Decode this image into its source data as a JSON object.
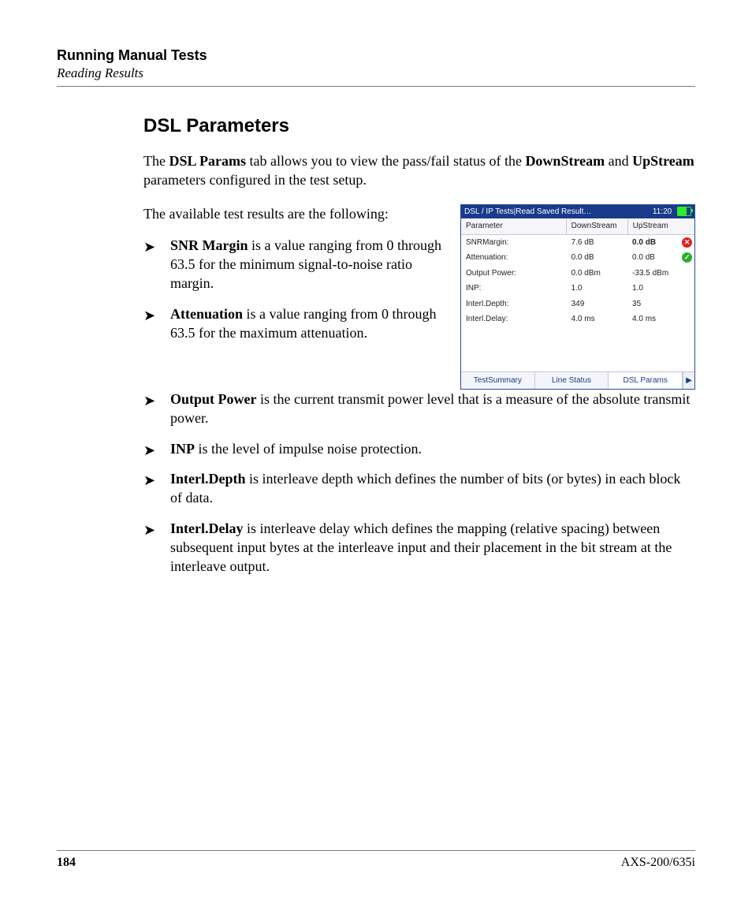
{
  "header": {
    "chapter": "Running Manual Tests",
    "section": "Reading Results"
  },
  "heading": "DSL Parameters",
  "intro": {
    "part1_prefix": "The ",
    "tab_name": "DSL Params",
    "part1_mid": " tab allows you to view the pass/fail status of the ",
    "downstream": "DownStream",
    "and": " and ",
    "upstream": "UpStream",
    "part1_suffix": " parameters configured in the test setup."
  },
  "available_line": "The available test results are the following:",
  "bullets": [
    {
      "term": "SNR Margin",
      "text": " is a value ranging from 0 through 63.5 for the minimum signal-to-noise ratio margin."
    },
    {
      "term": "Attenuation",
      "text": " is a value ranging from 0 through 63.5 for the maximum attenuation."
    },
    {
      "term": "Output Power",
      "text": " is the current transmit power level that is a measure of the absolute transmit power."
    },
    {
      "term": "INP",
      "text": " is the level of impulse noise protection."
    },
    {
      "term": "Interl.Depth",
      "text": " is interleave depth which defines the number of bits (or bytes) in each block of data."
    },
    {
      "term": "Interl.Delay",
      "text": " is interleave delay which defines the mapping (relative spacing) between subsequent input bytes at the interleave input and their placement in the bit stream at the interleave output."
    }
  ],
  "app": {
    "titlebar": {
      "path": "DSL / IP Tests|Read Saved Result…",
      "clock": "11:20"
    },
    "columns": {
      "param": "Parameter",
      "down": "DownStream",
      "up": "UpStream"
    },
    "rows": [
      {
        "param": "SNRMargin:",
        "down": "7.6  dB",
        "up": "0.0  dB",
        "up_fail": true,
        "status": "fail"
      },
      {
        "param": "Attenuation:",
        "down": "0.0  dB",
        "up": "0.0  dB",
        "up_fail": false,
        "status": "pass"
      },
      {
        "param": "Output Power:",
        "down": "0.0  dBm",
        "up": "-33.5  dBm",
        "up_fail": false,
        "status": ""
      },
      {
        "param": "INP:",
        "down": "1.0",
        "up": "1.0",
        "up_fail": false,
        "status": ""
      },
      {
        "param": "Interl.Depth:",
        "down": "349",
        "up": "35",
        "up_fail": false,
        "status": ""
      },
      {
        "param": "Interl.Delay:",
        "down": "4.0 ms",
        "up": "4.0 ms",
        "up_fail": false,
        "status": ""
      }
    ],
    "tabs": [
      {
        "label": "TestSummary",
        "active": false
      },
      {
        "label": "Line Status",
        "active": false
      },
      {
        "label": "DSL Params",
        "active": true
      }
    ],
    "arrow": "▶"
  },
  "footer": {
    "page": "184",
    "doc": "AXS-200/635i"
  }
}
